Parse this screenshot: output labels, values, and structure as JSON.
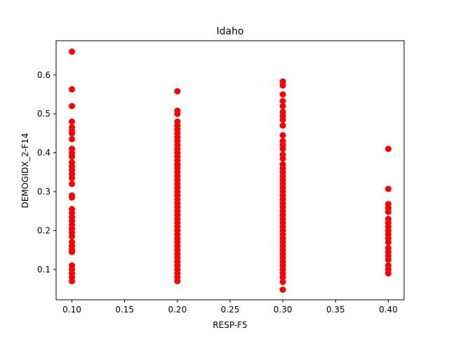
{
  "chart_data": {
    "type": "scatter",
    "title": "Idaho",
    "xlabel": "RESP-F5",
    "ylabel": "DEMOGIDX_2-F14",
    "xlim": [
      0.085,
      0.415
    ],
    "ylim": [
      0.022,
      0.688
    ],
    "xticks": [
      0.1,
      0.15,
      0.2,
      0.25,
      0.3,
      0.35,
      0.4
    ],
    "xtick_labels": [
      "0.10",
      "0.15",
      "0.20",
      "0.25",
      "0.30",
      "0.35",
      "0.40"
    ],
    "yticks": [
      0.1,
      0.2,
      0.3,
      0.4,
      0.5,
      0.6
    ],
    "ytick_labels": [
      "0.1",
      "0.2",
      "0.3",
      "0.4",
      "0.5",
      "0.6"
    ],
    "grid": false,
    "marker_color": "#ff0000",
    "series": [
      {
        "x_value": 0.1,
        "y": [
          0.66,
          0.563,
          0.52,
          0.48,
          0.465,
          0.455,
          0.45,
          0.435,
          0.41,
          0.4,
          0.39,
          0.375,
          0.365,
          0.355,
          0.345,
          0.335,
          0.32,
          0.29,
          0.285,
          0.255,
          0.245,
          0.235,
          0.225,
          0.215,
          0.205,
          0.195,
          0.185,
          0.17,
          0.16,
          0.15,
          0.145,
          0.11,
          0.1,
          0.09,
          0.08,
          0.07
        ]
      },
      {
        "x_value": 0.2,
        "y": [
          0.558,
          0.508,
          0.5,
          0.48,
          0.47,
          0.46,
          0.45,
          0.44,
          0.43,
          0.42,
          0.41,
          0.4,
          0.39,
          0.38,
          0.37,
          0.36,
          0.35,
          0.34,
          0.33,
          0.32,
          0.31,
          0.3,
          0.29,
          0.28,
          0.27,
          0.26,
          0.25,
          0.24,
          0.23,
          0.22,
          0.21,
          0.2,
          0.19,
          0.18,
          0.17,
          0.16,
          0.15,
          0.14,
          0.13,
          0.12,
          0.11,
          0.1,
          0.09,
          0.08,
          0.07
        ]
      },
      {
        "x_value": 0.3,
        "y": [
          0.583,
          0.573,
          0.55,
          0.533,
          0.52,
          0.505,
          0.495,
          0.485,
          0.47,
          0.445,
          0.43,
          0.42,
          0.41,
          0.395,
          0.385,
          0.37,
          0.36,
          0.35,
          0.34,
          0.33,
          0.32,
          0.31,
          0.3,
          0.29,
          0.28,
          0.27,
          0.26,
          0.25,
          0.24,
          0.23,
          0.22,
          0.21,
          0.2,
          0.19,
          0.18,
          0.17,
          0.16,
          0.15,
          0.14,
          0.13,
          0.12,
          0.11,
          0.1,
          0.09,
          0.08,
          0.068,
          0.048
        ]
      },
      {
        "x_value": 0.4,
        "y": [
          0.41,
          0.307,
          0.268,
          0.258,
          0.248,
          0.23,
          0.22,
          0.21,
          0.2,
          0.19,
          0.18,
          0.17,
          0.155,
          0.145,
          0.135,
          0.125,
          0.11,
          0.1,
          0.09
        ]
      }
    ]
  }
}
